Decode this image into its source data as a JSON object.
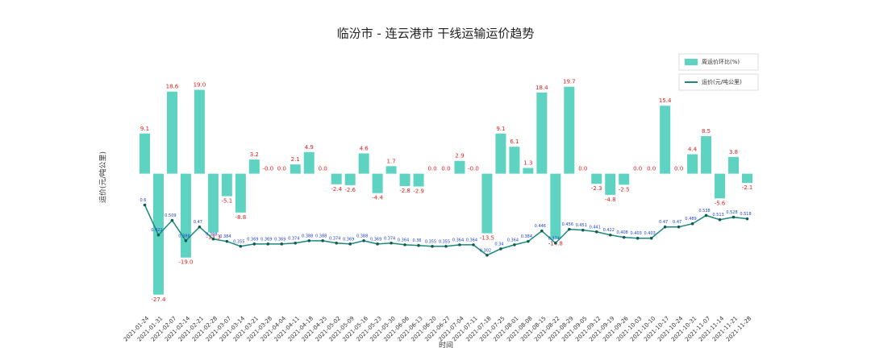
{
  "chart_data": {
    "type": "bar",
    "title": "临汾市 - 连云港市 干线运输运价趋势",
    "x_label": "时间",
    "y_label": "运价(元/吨公里)",
    "categories": [
      "2021-01-24",
      "2021-01-31",
      "2021-02-07",
      "2021-02-14",
      "2021-02-21",
      "2021-02-28",
      "2021-03-07",
      "2021-03-14",
      "2021-03-21",
      "2021-03-28",
      "2021-04-04",
      "2021-04-11",
      "2021-04-18",
      "2021-04-25",
      "2021-05-02",
      "2021-05-09",
      "2021-05-16",
      "2021-05-23",
      "2021-05-30",
      "2021-06-06",
      "2021-06-13",
      "2021-06-20",
      "2021-06-27",
      "2021-07-04",
      "2021-07-11",
      "2021-07-18",
      "2021-07-25",
      "2021-08-01",
      "2021-08-08",
      "2021-08-15",
      "2021-08-22",
      "2021-08-29",
      "2021-09-05",
      "2021-09-12",
      "2021-09-19",
      "2021-09-26",
      "2021-10-03",
      "2021-10-10",
      "2021-10-17",
      "2021-10-24",
      "2021-10-31",
      "2021-11-07",
      "2021-11-14",
      "2021-11-21",
      "2021-11-28"
    ],
    "series": [
      {
        "name": "周运价环比(%)",
        "type": "bar",
        "axis": "y2",
        "color": "#5fd3c2",
        "label_color": "#e02020",
        "values": [
          9.1,
          -27.4,
          18.6,
          -19.0,
          19.0,
          -13.3,
          -5.1,
          -8.8,
          3.2,
          0,
          0,
          2.1,
          4.9,
          0,
          -2.4,
          -2.6,
          4.6,
          -4.4,
          1.7,
          -2.8,
          -2.9,
          0,
          0,
          2.9,
          0,
          -13.5,
          9.1,
          6.1,
          1.3,
          18.4,
          -14.8,
          19.7,
          0,
          -2.3,
          -4.8,
          -2.5,
          0,
          0,
          15.4,
          0,
          4.4,
          8.5,
          -5.6,
          3.8,
          -2.1
        ],
        "value_labels": [
          "9.1",
          "-27.4",
          "18.6",
          "-19.0",
          "19.0",
          "-13.3",
          "-5.1",
          "-8.8",
          "3.2",
          "-0.0",
          "0.0",
          "2.1",
          "4.9",
          "0.0",
          "-2.4",
          "-2.6",
          "4.6",
          "-4.4",
          "1.7",
          "-2.8",
          "-2.9",
          "0.0",
          "0.0",
          "2.9",
          "-0.0",
          "-13.5",
          "9.1",
          "6.1",
          "1.3",
          "18.4",
          "-14.8",
          "19.7",
          "0.0",
          "-2.3",
          "-4.8",
          "-2.5",
          "0.0",
          "0.0",
          "15.4",
          "0.0",
          "4.4",
          "8.5",
          "-5.6",
          "3.8",
          "-2.1"
        ]
      },
      {
        "name": "运价(元/吨公里)",
        "type": "line",
        "color": "#1a8a7a",
        "label_color": "#2040d0",
        "values": [
          0.6,
          0.422,
          0.509,
          0.388,
          0.47,
          0.398,
          0.384,
          0.355,
          0.369,
          0.369,
          0.369,
          0.374,
          0.388,
          0.388,
          0.374,
          0.369,
          0.388,
          0.369,
          0.374,
          0.364,
          0.36,
          0.355,
          0.355,
          0.364,
          0.364,
          0.302,
          0.34,
          0.364,
          0.384,
          0.446,
          0.374,
          0.456,
          0.451,
          0.441,
          0.422,
          0.408,
          0.403,
          0.403,
          0.47,
          0.47,
          0.489,
          0.538,
          0.513,
          0.528,
          0.518
        ]
      }
    ],
    "ylim": [
      0,
      1.53
    ],
    "y2lim": [
      -30,
      28.4
    ],
    "legend": "upper right"
  }
}
